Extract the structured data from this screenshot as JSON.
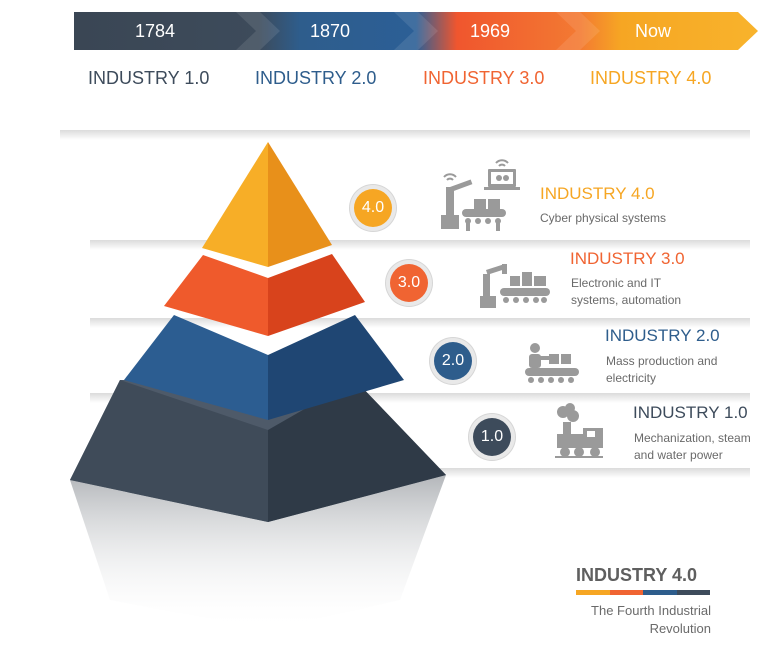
{
  "timeline": {
    "segments": [
      {
        "year": "1784",
        "color": "#3d4b5b"
      },
      {
        "year": "1870",
        "color": "#2e5d8c"
      },
      {
        "year": "1969",
        "color": "#f06432"
      },
      {
        "year": "Now",
        "color": "#f6a623"
      }
    ],
    "eras": [
      {
        "label": "INDUSTRY 1.0",
        "color": "#3d4b5b"
      },
      {
        "label": "INDUSTRY 2.0",
        "color": "#2e5d8c"
      },
      {
        "label": "INDUSTRY 3.0",
        "color": "#f06432"
      },
      {
        "label": "INDUSTRY 4.0",
        "color": "#f6a623"
      }
    ]
  },
  "levels": [
    {
      "badge": "4.0",
      "title": "INDUSTRY 4.0",
      "desc": [
        "Cyber physical systems"
      ],
      "color": "#f6a623",
      "icon": "smart-factory-icon"
    },
    {
      "badge": "3.0",
      "title": "INDUSTRY 3.0",
      "desc": [
        "Electronic and IT",
        "systems, automation"
      ],
      "color": "#f06432",
      "icon": "robot-arm-conveyor-icon"
    },
    {
      "badge": "2.0",
      "title": "INDUSTRY 2.0",
      "desc": [
        "Mass production and",
        "electricity"
      ],
      "color": "#2e5d8c",
      "icon": "assembly-line-worker-icon"
    },
    {
      "badge": "1.0",
      "title": "INDUSTRY 1.0",
      "desc": [
        "Mechanization, steam",
        "and water power"
      ],
      "color": "#3d4b5b",
      "icon": "steam-locomotive-icon"
    }
  ],
  "footer": {
    "title": "INDUSTRY 4.0",
    "subtitle_line1": "The Fourth Industrial",
    "subtitle_line2": "Revolution",
    "title_color": "#5f5f5f",
    "stripe_colors": [
      "#f6a623",
      "#f06432",
      "#2e5d8c",
      "#3d4b5b"
    ]
  }
}
